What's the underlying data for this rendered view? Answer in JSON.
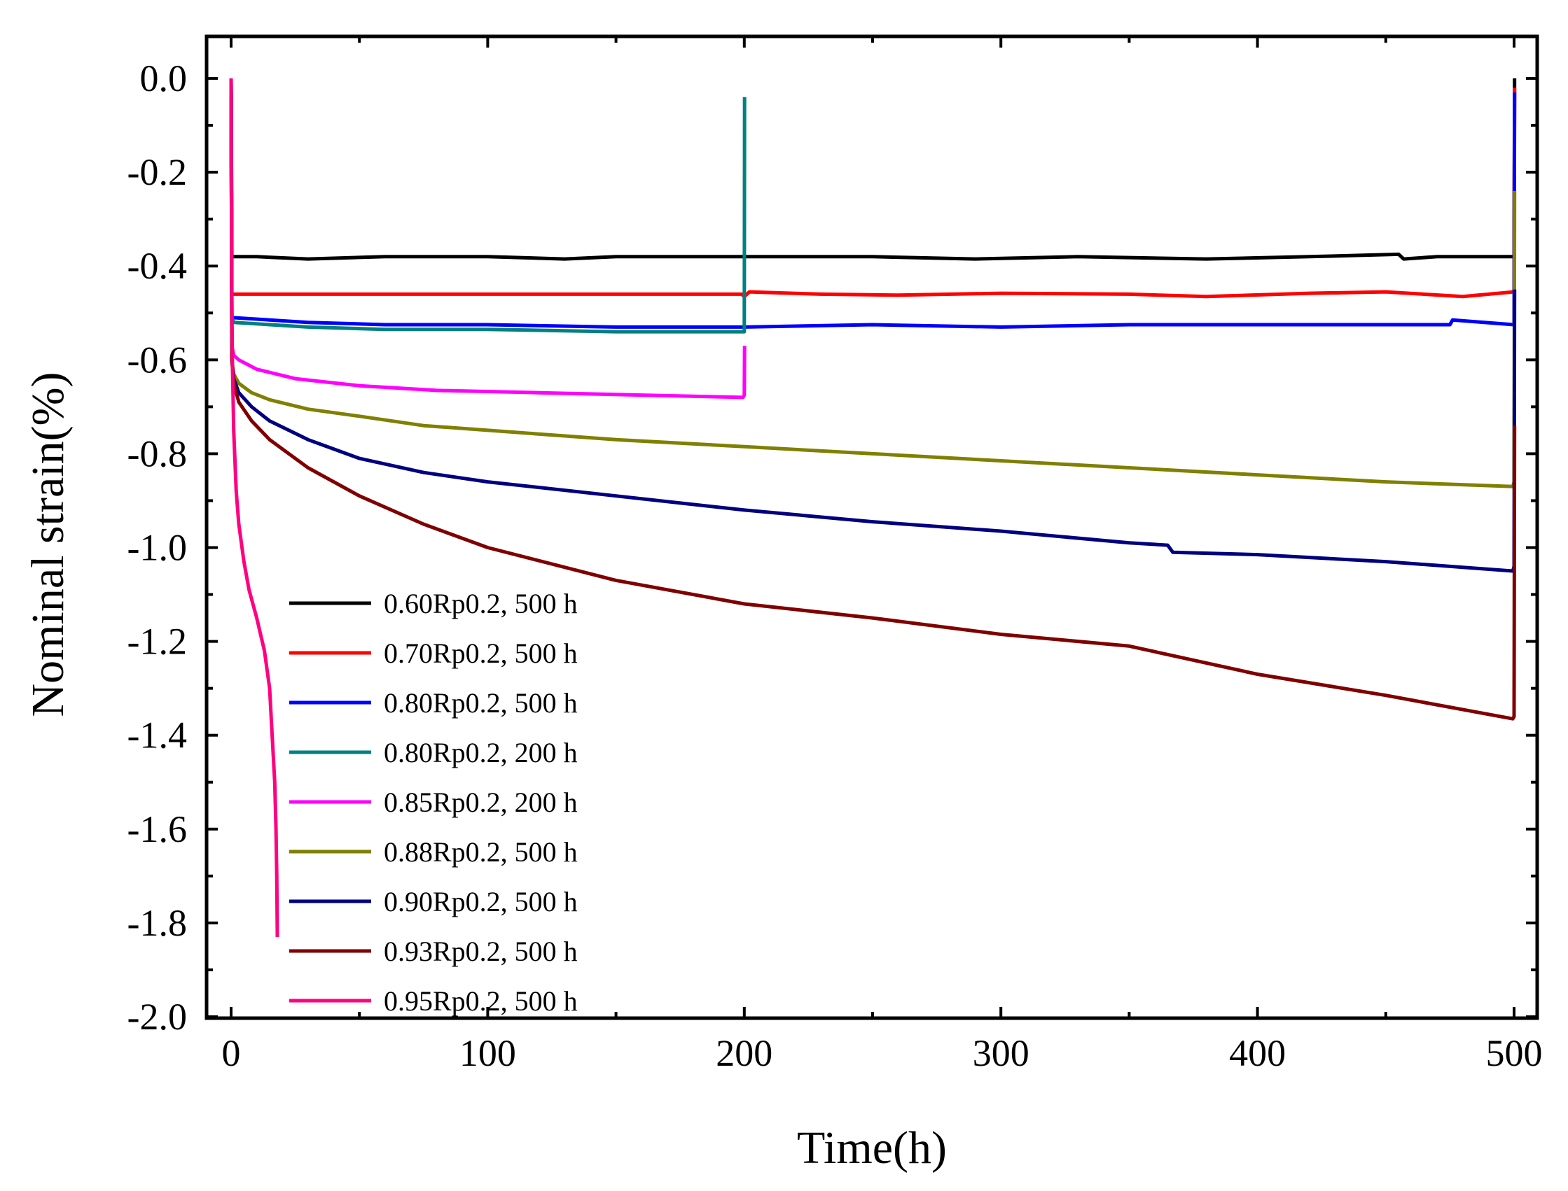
{
  "chart_data": {
    "type": "line",
    "title": "",
    "xlabel": "Time(h)",
    "ylabel": "Nominal strain(%)",
    "xlim": [
      -10,
      512
    ],
    "ylim": [
      -2.0,
      0.1
    ],
    "xticks": [
      0,
      100,
      200,
      300,
      400,
      500
    ],
    "xtick_labels": [
      "0",
      "100",
      "200",
      "300",
      "400",
      "500"
    ],
    "yticks": [
      0.0,
      -0.2,
      -0.4,
      -0.6,
      -0.8,
      -1.0,
      -1.2,
      -1.4,
      -1.6,
      -1.8,
      -2.0
    ],
    "ytick_labels": [
      "0.0",
      "-0.2",
      "-0.4",
      "-0.6",
      "-0.8",
      "-1.0",
      "-1.2",
      "-1.4",
      "-1.6",
      "-1.8",
      "-2.0"
    ],
    "grid": false,
    "legend_position": "lower-left",
    "series": [
      {
        "name": "0.60Rp0.2, 500 h",
        "color": "#000000",
        "x": [
          0,
          0.3,
          1,
          10,
          30,
          60,
          100,
          130,
          150,
          200,
          250,
          290,
          330,
          380,
          420,
          455,
          457,
          470,
          500,
          500.2
        ],
        "y": [
          0.0,
          -0.38,
          -0.38,
          -0.38,
          -0.385,
          -0.38,
          -0.38,
          -0.385,
          -0.38,
          -0.38,
          -0.38,
          -0.385,
          -0.38,
          -0.385,
          -0.38,
          -0.375,
          -0.385,
          -0.38,
          -0.38,
          0.0
        ]
      },
      {
        "name": "0.70Rp0.2, 500 h",
        "color": "#ff0000",
        "x": [
          0,
          0.3,
          1,
          50,
          100,
          150,
          199,
          200,
          202,
          230,
          260,
          300,
          350,
          380,
          420,
          450,
          480,
          500,
          500.2
        ],
        "y": [
          0.0,
          -0.46,
          -0.46,
          -0.46,
          -0.46,
          -0.46,
          -0.46,
          -0.465,
          -0.455,
          -0.46,
          -0.462,
          -0.458,
          -0.46,
          -0.465,
          -0.458,
          -0.455,
          -0.465,
          -0.455,
          -0.02
        ]
      },
      {
        "name": "0.80Rp0.2, 500 h",
        "color": "#0000ff",
        "x": [
          0,
          0.3,
          1,
          30,
          60,
          100,
          150,
          200,
          250,
          300,
          350,
          400,
          450,
          475,
          476,
          500,
          500.2
        ],
        "y": [
          0.0,
          -0.51,
          -0.51,
          -0.52,
          -0.525,
          -0.525,
          -0.53,
          -0.53,
          -0.525,
          -0.53,
          -0.525,
          -0.525,
          -0.525,
          -0.525,
          -0.515,
          -0.525,
          -0.03
        ]
      },
      {
        "name": "0.80Rp0.2, 200 h",
        "color": "#008080",
        "x": [
          0,
          0.3,
          1,
          30,
          60,
          100,
          150,
          199.5,
          200,
          200.1
        ],
        "y": [
          0.0,
          -0.51,
          -0.52,
          -0.53,
          -0.535,
          -0.535,
          -0.54,
          -0.54,
          -0.54,
          -0.04
        ]
      },
      {
        "name": "0.85Rp0.2, 200 h",
        "color": "#ff00ff",
        "x": [
          0,
          0.3,
          1,
          3,
          10,
          25,
          50,
          80,
          120,
          160,
          199.5,
          200,
          200.1
        ],
        "y": [
          0.0,
          -0.57,
          -0.59,
          -0.6,
          -0.62,
          -0.64,
          -0.655,
          -0.665,
          -0.67,
          -0.675,
          -0.68,
          -0.675,
          -0.57
        ]
      },
      {
        "name": "0.88Rp0.2, 500 h",
        "color": "#808000",
        "x": [
          0,
          0.3,
          1,
          3,
          8,
          15,
          30,
          50,
          75,
          100,
          150,
          200,
          250,
          300,
          350,
          400,
          450,
          499.5,
          500,
          500.2
        ],
        "y": [
          0.0,
          -0.6,
          -0.63,
          -0.65,
          -0.67,
          -0.685,
          -0.705,
          -0.72,
          -0.74,
          -0.75,
          -0.77,
          -0.785,
          -0.8,
          -0.815,
          -0.83,
          -0.845,
          -0.86,
          -0.87,
          -0.86,
          -0.24
        ]
      },
      {
        "name": "0.90Rp0.2, 500 h",
        "color": "#000080",
        "x": [
          0,
          0.3,
          1,
          3,
          8,
          15,
          30,
          50,
          75,
          100,
          150,
          200,
          250,
          300,
          350,
          365,
          367,
          400,
          450,
          499.5,
          500,
          500.2
        ],
        "y": [
          0.0,
          -0.6,
          -0.64,
          -0.67,
          -0.7,
          -0.73,
          -0.77,
          -0.81,
          -0.84,
          -0.86,
          -0.89,
          -0.92,
          -0.945,
          -0.965,
          -0.99,
          -0.995,
          -1.01,
          -1.015,
          -1.03,
          -1.05,
          -1.04,
          -0.45
        ]
      },
      {
        "name": "0.93Rp0.2, 500 h",
        "color": "#800000",
        "x": [
          0,
          0.3,
          1,
          3,
          8,
          15,
          30,
          50,
          75,
          100,
          150,
          200,
          250,
          300,
          350,
          400,
          450,
          499.5,
          500,
          500.2
        ],
        "y": [
          0.0,
          -0.6,
          -0.65,
          -0.69,
          -0.73,
          -0.77,
          -0.83,
          -0.89,
          -0.95,
          -1.0,
          -1.07,
          -1.12,
          -1.15,
          -1.185,
          -1.21,
          -1.27,
          -1.315,
          -1.365,
          -1.36,
          -0.74
        ]
      },
      {
        "name": "0.95Rp0.2, 500 h",
        "color": "#ff0080",
        "x": [
          0,
          0.2,
          0.5,
          1,
          2,
          3,
          5,
          7,
          10,
          13,
          15,
          16,
          17,
          17.5,
          17.8,
          18
        ],
        "y": [
          0.0,
          -0.4,
          -0.6,
          -0.75,
          -0.88,
          -0.95,
          -1.03,
          -1.09,
          -1.15,
          -1.22,
          -1.3,
          -1.4,
          -1.5,
          -1.6,
          -1.7,
          -1.83
        ]
      }
    ]
  }
}
